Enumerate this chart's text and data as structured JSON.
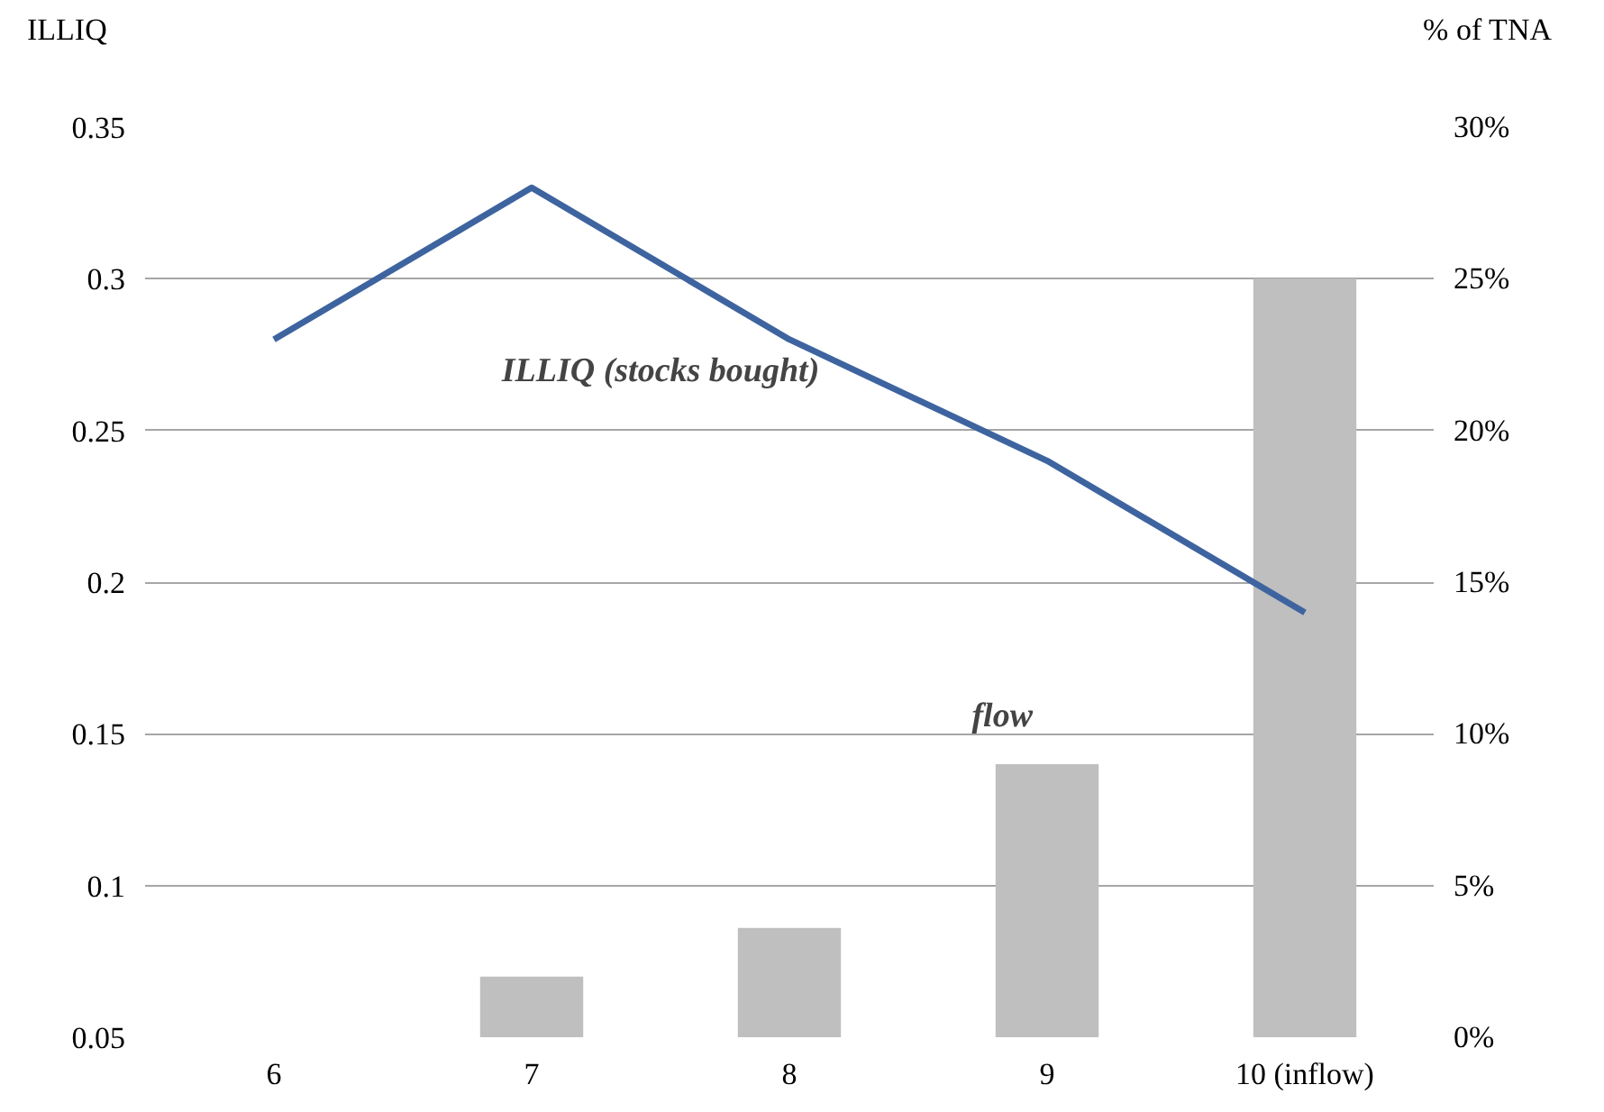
{
  "chart_data": {
    "type": "bar",
    "ylabel": "ILLIQ",
    "y2label": "% of TNA",
    "categories": [
      "6",
      "7",
      "8",
      "9",
      "10 (inflow)"
    ],
    "series": [
      {
        "name": "ILLIQ (stocks bought)",
        "type": "line",
        "color": "#3e64a0",
        "values": [
          0.28,
          0.33,
          0.28,
          0.24,
          0.19
        ]
      },
      {
        "name": "flow",
        "axis": "y2",
        "color": "#bfbfbf",
        "values": [
          0,
          2.0,
          3.6,
          9.0,
          25.0
        ]
      }
    ],
    "ylim": [
      0.05,
      0.35
    ],
    "yticks": [
      0.05,
      0.1,
      0.15,
      0.2,
      0.25,
      0.3,
      0.35
    ],
    "y2lim": [
      0,
      30
    ],
    "y2ticks": [
      {
        "value": 0,
        "label": "0%"
      },
      {
        "value": 5,
        "label": "5%"
      },
      {
        "value": 10,
        "label": "10%"
      },
      {
        "value": 15,
        "label": "15%"
      },
      {
        "value": 20,
        "label": "20%"
      },
      {
        "value": 25,
        "label": "25%"
      },
      {
        "value": 30,
        "label": "30%"
      }
    ],
    "grid": "y"
  }
}
